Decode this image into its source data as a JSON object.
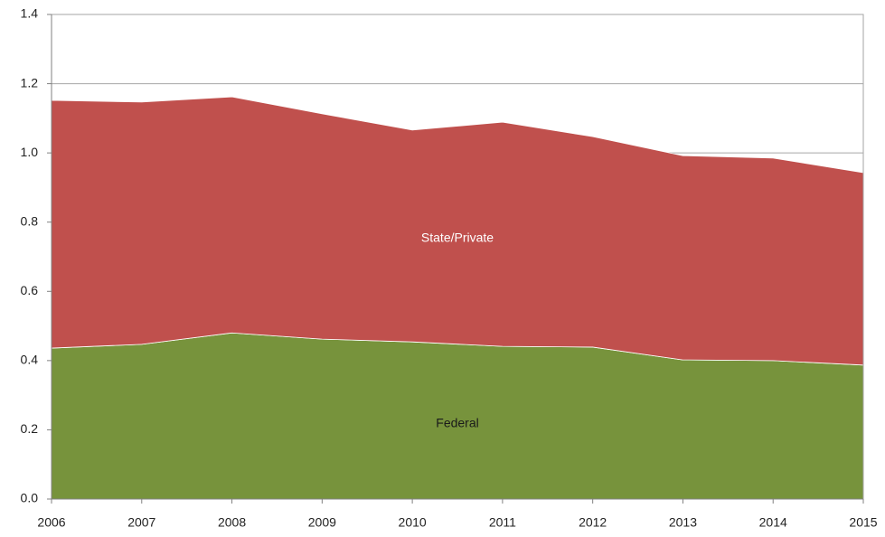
{
  "chart_data": {
    "type": "stacked-area",
    "categories": [
      "2006",
      "2007",
      "2008",
      "2009",
      "2010",
      "2011",
      "2012",
      "2013",
      "2014",
      "2015"
    ],
    "series": [
      {
        "name": "Federal",
        "color": "#77933c",
        "label_color": "#1a1a1a",
        "values": [
          0.436,
          0.447,
          0.48,
          0.462,
          0.454,
          0.441,
          0.439,
          0.402,
          0.4,
          0.387
        ]
      },
      {
        "name": "State/Private",
        "color": "#c0504d",
        "label_color": "#ffffff",
        "values": [
          0.716,
          0.7,
          0.682,
          0.651,
          0.612,
          0.648,
          0.608,
          0.59,
          0.585,
          0.556
        ]
      }
    ],
    "ylim": [
      0,
      1.4
    ],
    "yticks": [
      {
        "value": 0,
        "label": "0.0"
      },
      0.2,
      0.4,
      0.6,
      0.8,
      {
        "value": 1,
        "label": "1.0"
      },
      1.2,
      1.4
    ],
    "grid": true
  }
}
